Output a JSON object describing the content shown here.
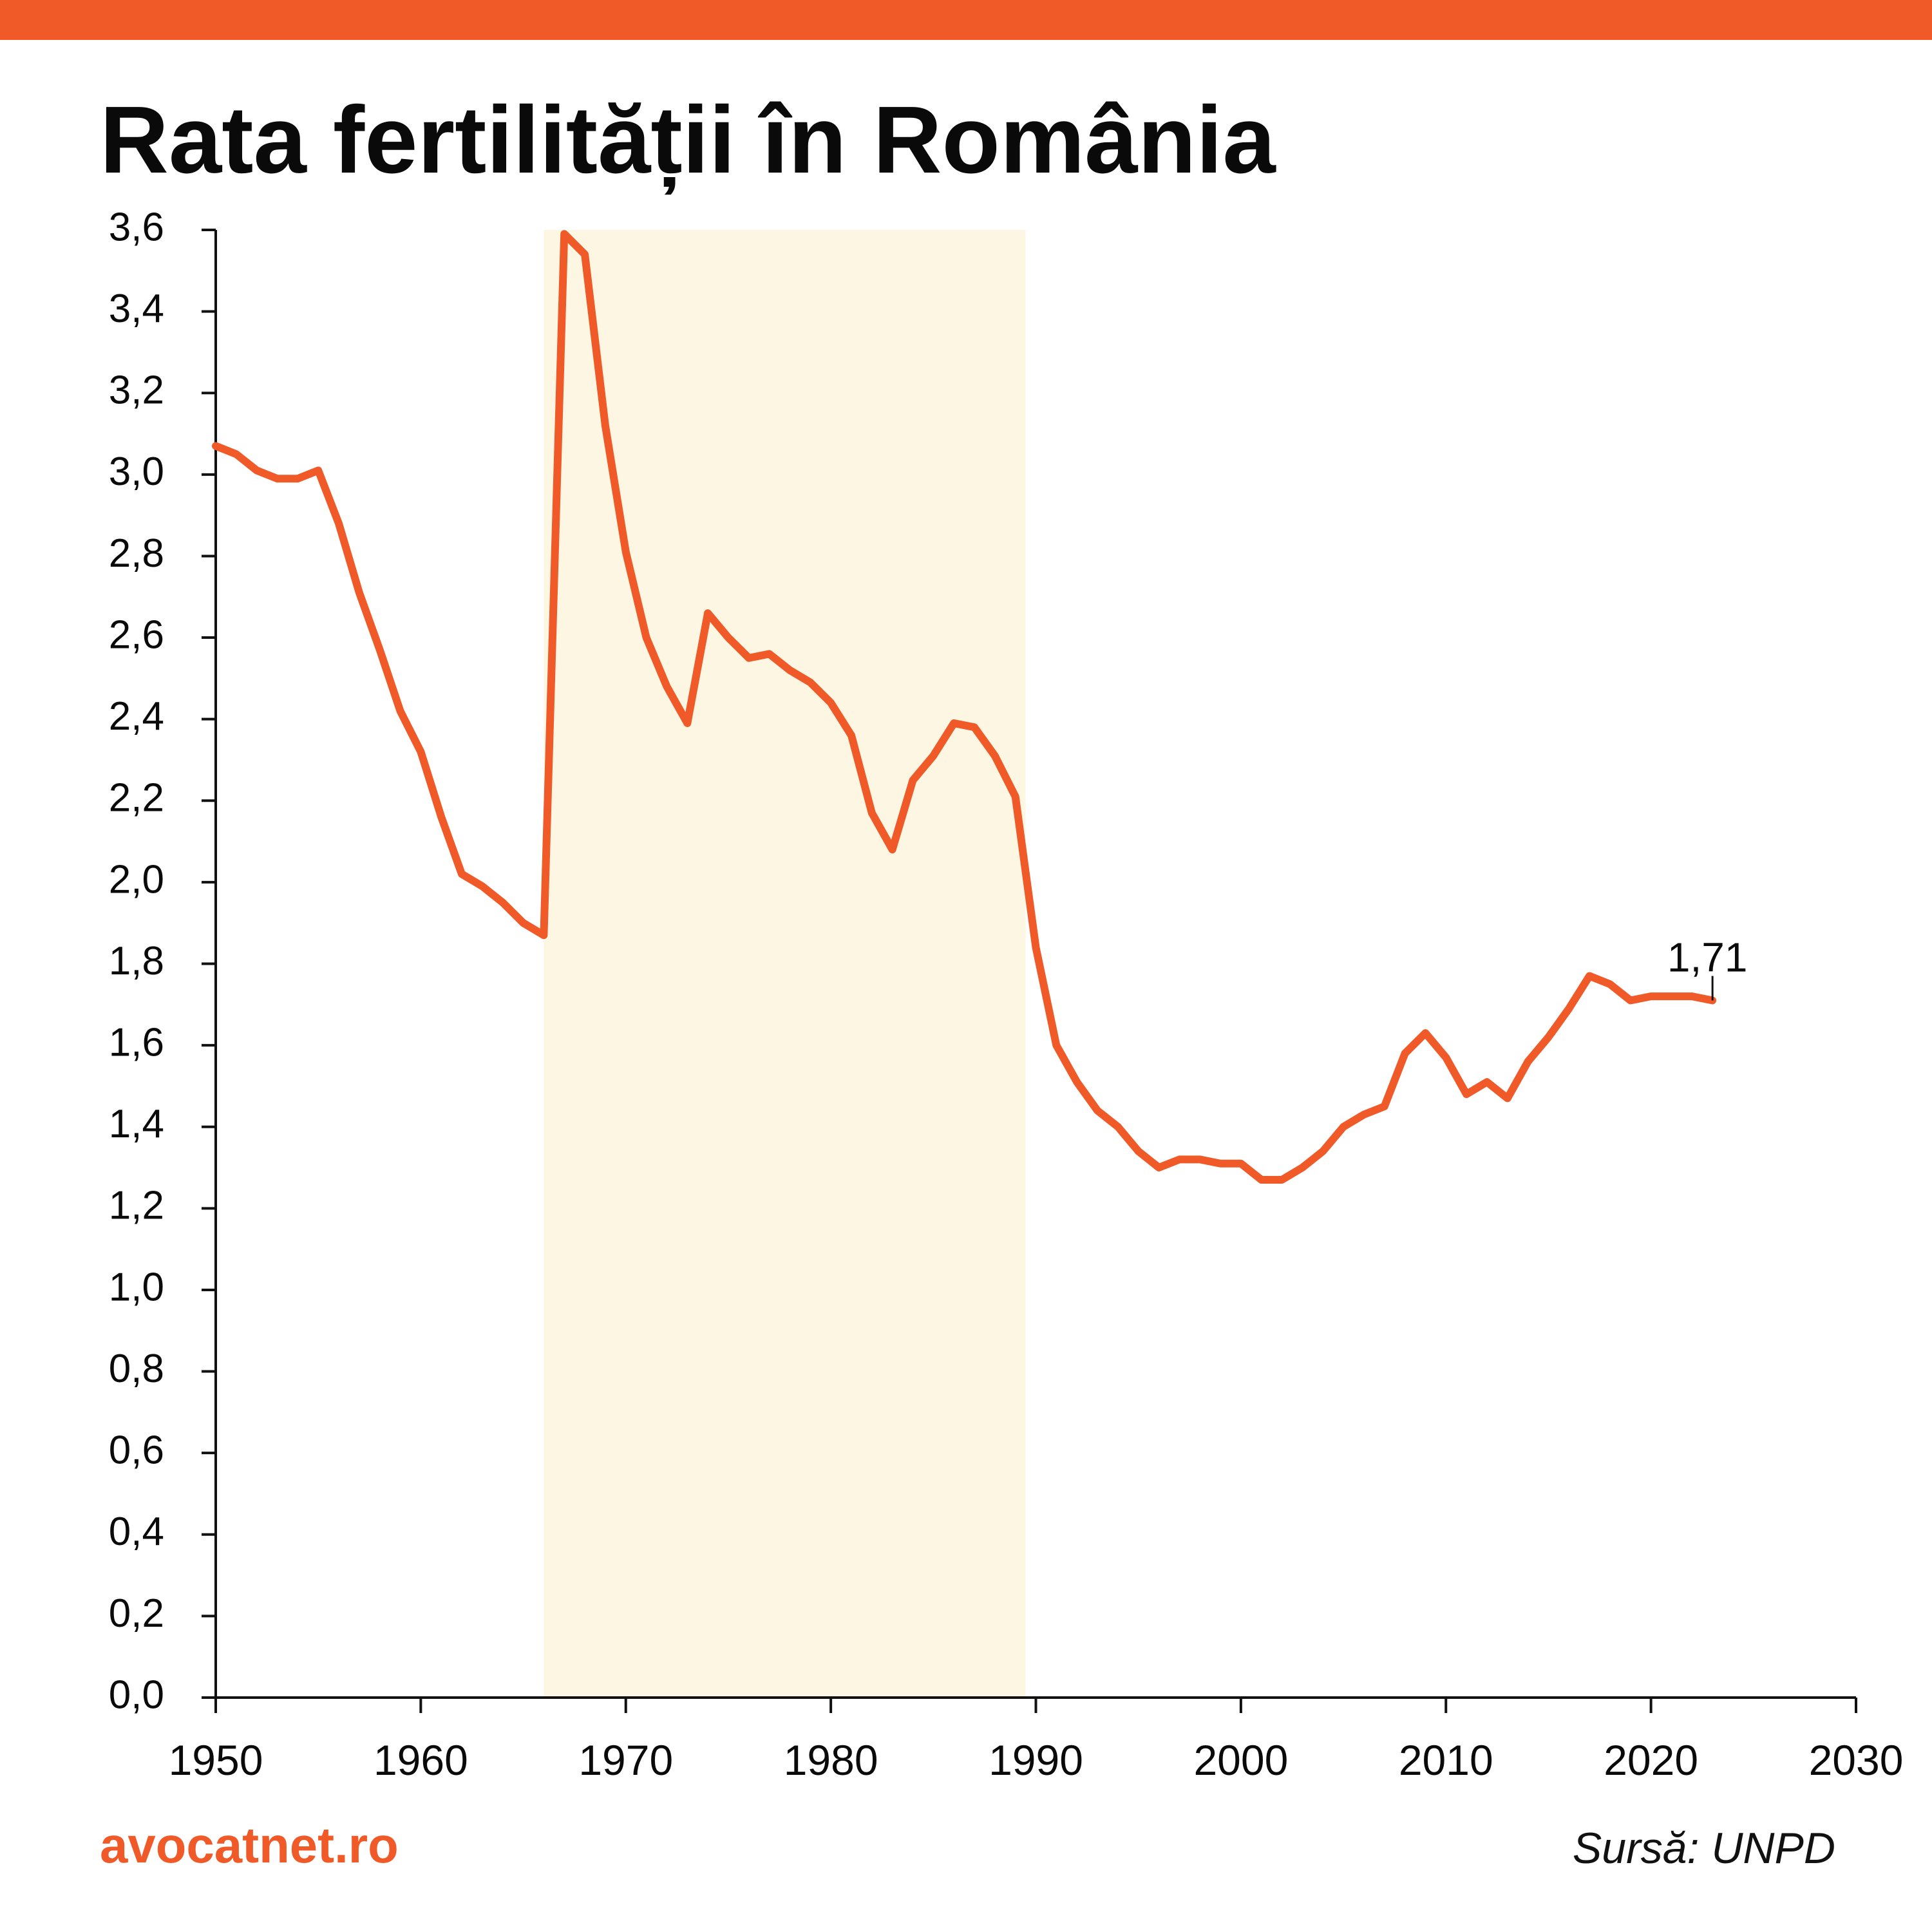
{
  "colors": {
    "accent": "#f05a28",
    "highlight_band": "#fcf6e3",
    "axis": "#111111",
    "text": "#0a0a0a"
  },
  "header": {
    "title": "Rata fertilității în România"
  },
  "footer": {
    "site": "avocatnet.ro",
    "source": "Sursă: UNPD"
  },
  "chart_data": {
    "type": "line",
    "title": "Rata fertilității în România",
    "xlabel": "",
    "ylabel": "",
    "xlim": [
      1950,
      2030
    ],
    "ylim": [
      0,
      3.6
    ],
    "x_ticks": [
      "1950",
      "1960",
      "1970",
      "1980",
      "1990",
      "2000",
      "2010",
      "2020",
      "2030"
    ],
    "y_ticks": [
      "0,0",
      "0,2",
      "0,4",
      "0,6",
      "0,8",
      "1,0",
      "1,2",
      "1,4",
      "1,6",
      "1,8",
      "2,0",
      "2,2",
      "2,4",
      "2,6",
      "2,8",
      "3,0",
      "3,2",
      "3,4",
      "3,6"
    ],
    "grid": false,
    "highlight_range": [
      1966,
      1989.5
    ],
    "series": [
      {
        "x": [
          1950,
          1951,
          1952,
          1953,
          1954,
          1955,
          1956,
          1957,
          1958,
          1959,
          1960,
          1961,
          1962,
          1963,
          1964,
          1965,
          1966,
          1967,
          1968,
          1969,
          1970,
          1971,
          1972,
          1973,
          1974,
          1975,
          1976,
          1977,
          1978,
          1979,
          1980,
          1981,
          1982,
          1983,
          1984,
          1985,
          1986,
          1987,
          1988,
          1989,
          1990,
          1991,
          1992,
          1993,
          1994,
          1995,
          1996,
          1997,
          1998,
          1999,
          2000,
          2001,
          2002,
          2003,
          2004,
          2005,
          2006,
          2007,
          2008,
          2009,
          2010,
          2011,
          2012,
          2013,
          2014,
          2015,
          2016,
          2017,
          2018,
          2019,
          2020,
          2021,
          2022,
          2023
        ],
        "values": [
          3.07,
          3.05,
          3.01,
          2.99,
          2.99,
          3.01,
          2.88,
          2.71,
          2.57,
          2.42,
          2.32,
          2.16,
          2.02,
          1.99,
          1.95,
          1.9,
          1.87,
          3.59,
          3.54,
          3.12,
          2.81,
          2.6,
          2.48,
          2.39,
          2.66,
          2.6,
          2.55,
          2.56,
          2.52,
          2.49,
          2.44,
          2.36,
          2.17,
          2.08,
          2.25,
          2.31,
          2.39,
          2.38,
          2.31,
          2.21,
          1.84,
          1.6,
          1.51,
          1.44,
          1.4,
          1.34,
          1.3,
          1.32,
          1.32,
          1.31,
          1.31,
          1.27,
          1.27,
          1.3,
          1.34,
          1.4,
          1.43,
          1.45,
          1.58,
          1.63,
          1.57,
          1.48,
          1.51,
          1.47,
          1.56,
          1.62,
          1.69,
          1.77,
          1.75,
          1.71,
          1.72,
          1.72,
          1.72,
          1.71
        ]
      }
    ],
    "annotations": [
      {
        "x": 2023,
        "y": 1.71,
        "text": "1,71"
      }
    ]
  }
}
